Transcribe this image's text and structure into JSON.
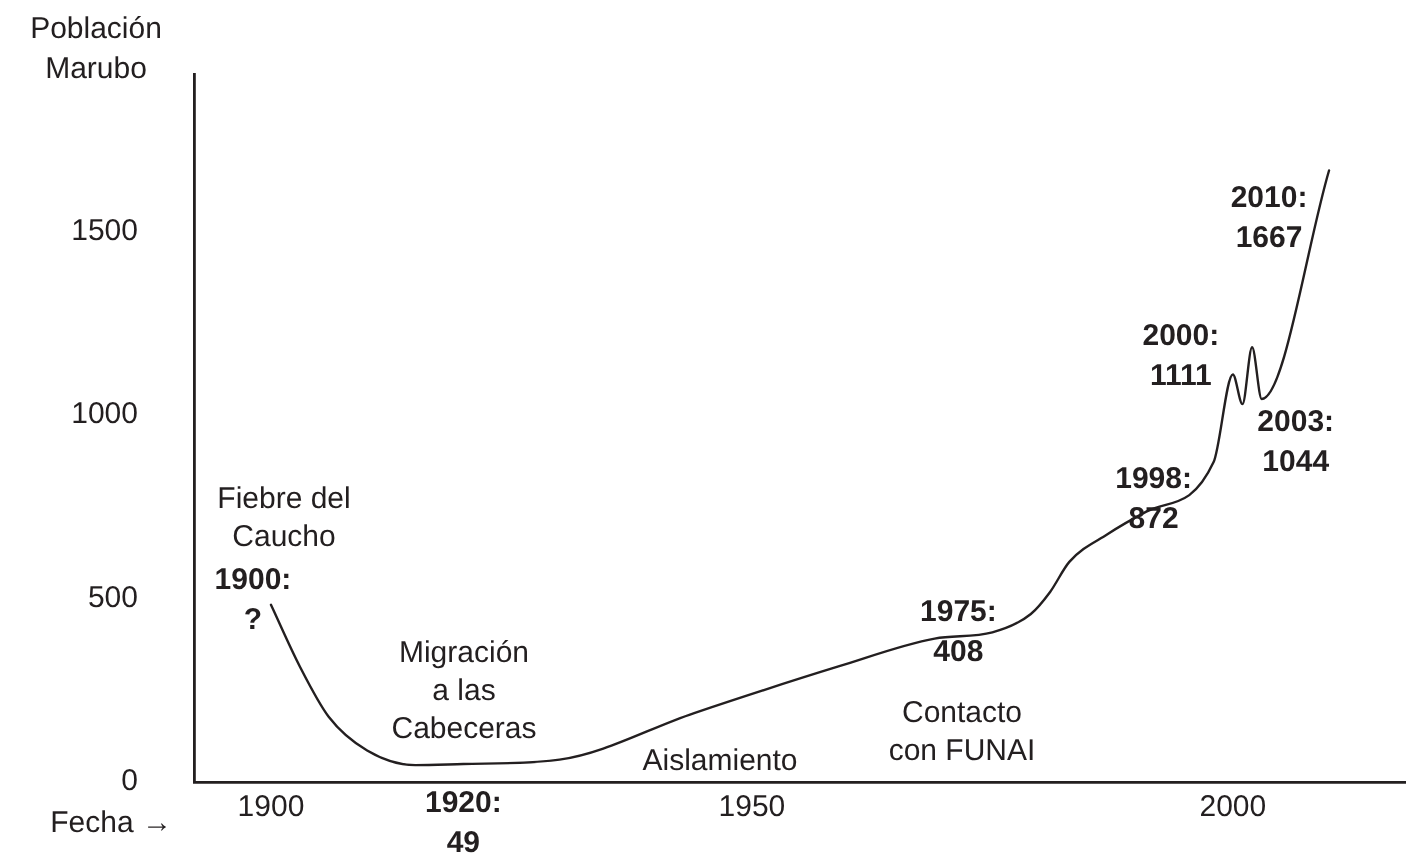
{
  "chart_data": {
    "type": "line",
    "xlabel": "Fecha →",
    "ylabel": "Población\nMarubo",
    "x": [
      1900,
      1903,
      1906,
      1910,
      1915,
      1920,
      1930,
      1944,
      1959,
      1969,
      1975,
      1979,
      1981,
      1983,
      1987,
      1991,
      1998,
      2000,
      2001,
      2002,
      2003,
      2010
    ],
    "values": [
      483,
      315,
      178,
      86,
      46,
      49,
      61,
      188,
      315,
      391,
      408,
      458,
      518,
      600,
      676,
      737,
      872,
      1111,
      1030,
      1185,
      1044,
      1667
    ],
    "color": "#231f20",
    "xlim": [
      1892,
      2018
    ],
    "xticks": [
      1900,
      1950,
      2000
    ],
    "ylim": [
      0,
      1930
    ],
    "yticks": [
      0,
      500,
      1000,
      1500
    ],
    "grid": false,
    "annotations": [
      {
        "text": "1900:\n?",
        "x": 1900,
        "y": 483
      },
      {
        "text": "1920:\n49",
        "x": 1920,
        "y": 49
      },
      {
        "text": "1975:\n408",
        "x": 1975,
        "y": 408
      },
      {
        "text": "1998:\n872",
        "x": 1998,
        "y": 872
      },
      {
        "text": "2000:\n1111",
        "x": 2000,
        "y": 1111
      },
      {
        "text": "2003:\n1044",
        "x": 2003,
        "y": 1044
      },
      {
        "text": "2010:\n1667",
        "x": 2010,
        "y": 1667
      },
      "Fiebre del\nCaucho",
      "Migración\na las\nCabeceras",
      "Aislamiento",
      "Contacto\ncon FUNAI"
    ]
  }
}
